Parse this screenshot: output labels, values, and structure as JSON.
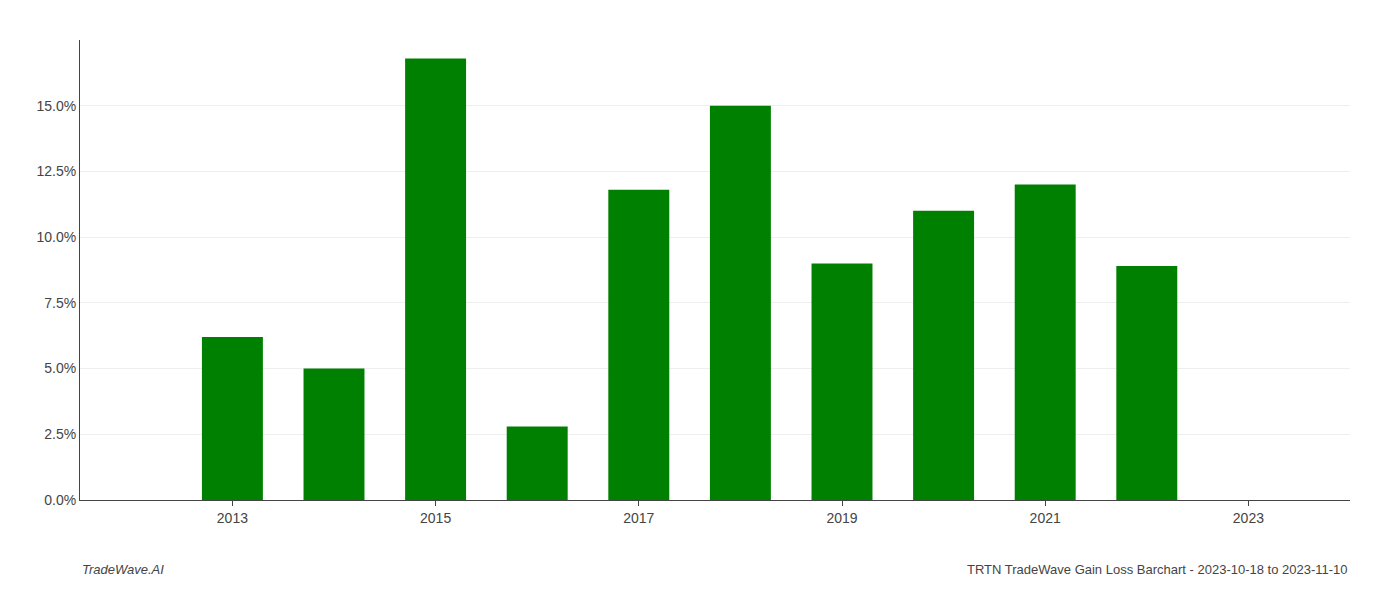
{
  "chart_data": {
    "type": "bar",
    "x": [
      2013,
      2014,
      2015,
      2016,
      2017,
      2018,
      2019,
      2020,
      2021,
      2022
    ],
    "values": [
      0.062,
      0.05,
      0.168,
      0.028,
      0.118,
      0.15,
      0.09,
      0.11,
      0.12,
      0.089
    ],
    "color": "#008000",
    "xlim": [
      2011.5,
      2024.0
    ],
    "xticks": [
      2013,
      2015,
      2017,
      2019,
      2021,
      2023
    ],
    "ylim": [
      0,
      0.175
    ],
    "yticks": [
      {
        "value": 0.0,
        "label": "0.0%"
      },
      {
        "value": 0.025,
        "label": "2.5%"
      },
      {
        "value": 0.05,
        "label": "5.0%"
      },
      {
        "value": 0.075,
        "label": "7.5%"
      },
      {
        "value": 0.1,
        "label": "10.0%"
      },
      {
        "value": 0.125,
        "label": "12.5%"
      },
      {
        "value": 0.15,
        "label": "15.0%"
      }
    ],
    "grid": true,
    "annotations": [
      "TradeWave.AI",
      "TRTN TradeWave Gain Loss Barchart - 2023-10-18 to 2023-11-10"
    ]
  }
}
